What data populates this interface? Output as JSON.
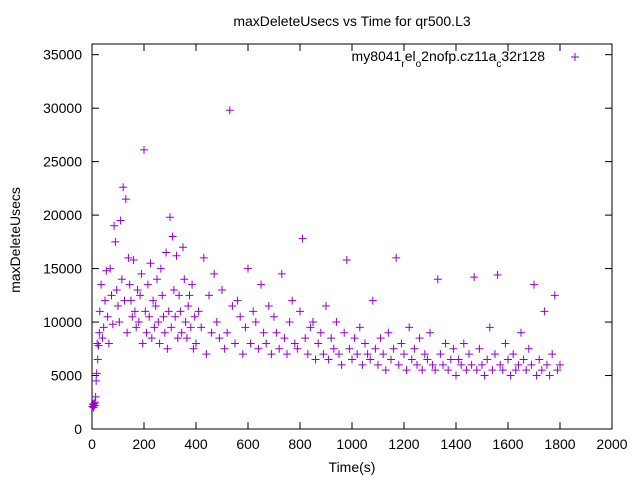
{
  "chart_data": {
    "type": "scatter",
    "title": "maxDeleteUsecs vs Time for qr500.L3",
    "xlabel": "Time(s)",
    "ylabel": "maxDeleteUsecs",
    "xlim": [
      0,
      2000
    ],
    "ylim": [
      0,
      36000
    ],
    "xticks": [
      0,
      200,
      400,
      600,
      800,
      1000,
      1200,
      1400,
      1600,
      1800,
      2000
    ],
    "yticks": [
      0,
      5000,
      10000,
      15000,
      20000,
      25000,
      30000,
      35000
    ],
    "grid": false,
    "legend_position": "top-right",
    "series": [
      {
        "name_parts": [
          "my8041",
          "r",
          "el",
          "o",
          "2nofp.cz11a",
          "c",
          "32r128"
        ],
        "marker": "+",
        "color": "#9400d3",
        "x": [
          2,
          4,
          6,
          8,
          10,
          12,
          14,
          16,
          18,
          20,
          22,
          25,
          28,
          30,
          35,
          40,
          45,
          50,
          55,
          60,
          65,
          70,
          75,
          80,
          85,
          90,
          95,
          100,
          105,
          110,
          115,
          120,
          125,
          130,
          135,
          140,
          145,
          150,
          155,
          160,
          165,
          170,
          175,
          180,
          185,
          190,
          195,
          200,
          205,
          210,
          215,
          220,
          225,
          230,
          235,
          240,
          245,
          250,
          255,
          260,
          265,
          270,
          275,
          280,
          285,
          290,
          295,
          300,
          305,
          310,
          315,
          320,
          325,
          330,
          335,
          340,
          345,
          350,
          355,
          360,
          365,
          370,
          375,
          380,
          385,
          390,
          395,
          400,
          410,
          420,
          430,
          440,
          450,
          460,
          470,
          480,
          490,
          500,
          510,
          520,
          530,
          540,
          550,
          560,
          570,
          580,
          590,
          600,
          610,
          620,
          630,
          640,
          650,
          660,
          670,
          680,
          690,
          700,
          710,
          720,
          730,
          740,
          750,
          760,
          770,
          780,
          790,
          800,
          810,
          820,
          830,
          840,
          850,
          860,
          870,
          880,
          890,
          900,
          910,
          920,
          930,
          940,
          950,
          960,
          970,
          980,
          990,
          1000,
          1010,
          1020,
          1030,
          1040,
          1050,
          1060,
          1070,
          1080,
          1090,
          1100,
          1110,
          1120,
          1130,
          1140,
          1150,
          1160,
          1170,
          1180,
          1190,
          1200,
          1210,
          1220,
          1230,
          1240,
          1250,
          1260,
          1270,
          1280,
          1290,
          1300,
          1310,
          1320,
          1330,
          1340,
          1350,
          1360,
          1370,
          1380,
          1390,
          1400,
          1410,
          1420,
          1430,
          1440,
          1450,
          1460,
          1470,
          1480,
          1490,
          1500,
          1510,
          1520,
          1530,
          1540,
          1550,
          1560,
          1570,
          1580,
          1590,
          1600,
          1610,
          1620,
          1630,
          1640,
          1650,
          1660,
          1670,
          1680,
          1690,
          1700,
          1710,
          1720,
          1730,
          1740,
          1750,
          1760,
          1770,
          1780,
          1790,
          1800
        ],
        "y": [
          2100,
          2300,
          2000,
          2400,
          2200,
          2500,
          3000,
          4500,
          5200,
          8000,
          6500,
          7800,
          9000,
          11000,
          13500,
          8500,
          9500,
          12000,
          14800,
          10500,
          8000,
          15000,
          12500,
          9800,
          19000,
          17500,
          13000,
          11500,
          10000,
          19500,
          14000,
          22600,
          12000,
          21500,
          9000,
          16000,
          13500,
          12000,
          10500,
          15800,
          11000,
          9500,
          13000,
          10000,
          12500,
          14500,
          8000,
          26100,
          11000,
          9000,
          13500,
          10500,
          15500,
          8500,
          12000,
          9500,
          11500,
          14000,
          10000,
          8000,
          15000,
          12500,
          10500,
          9000,
          16500,
          7500,
          11000,
          19800,
          9500,
          18000,
          13000,
          10500,
          16200,
          8500,
          12500,
          11000,
          9000,
          17000,
          14000,
          10000,
          8500,
          11500,
          12500,
          9500,
          13500,
          7500,
          10500,
          8000,
          11000,
          9500,
          16000,
          7000,
          12500,
          9000,
          14500,
          10000,
          8500,
          13000,
          7500,
          9000,
          29800,
          11500,
          8000,
          12000,
          10500,
          7000,
          9500,
          15000,
          8000,
          11000,
          10000,
          7500,
          13500,
          9000,
          8000,
          11500,
          7000,
          10500,
          9000,
          7500,
          14500,
          8500,
          7000,
          10000,
          12000,
          8000,
          7500,
          11000,
          17800,
          8500,
          7000,
          9500,
          10000,
          6500,
          8000,
          9000,
          7000,
          11500,
          6500,
          8500,
          7500,
          10000,
          7000,
          6000,
          9000,
          15800,
          7500,
          6500,
          8500,
          7000,
          9500,
          6000,
          8000,
          7000,
          6500,
          12000,
          7500,
          6000,
          8500,
          7000,
          5500,
          9000,
          6500,
          7500,
          16000,
          6000,
          8000,
          7000,
          5500,
          9500,
          6500,
          7500,
          6000,
          8500,
          5500,
          7000,
          6500,
          9000,
          6000,
          5500,
          14000,
          7000,
          6000,
          8000,
          5500,
          6500,
          7500,
          5000,
          6500,
          6000,
          8000,
          5500,
          7000,
          6000,
          14200,
          5500,
          7500,
          6000,
          5000,
          6500,
          9500,
          5500,
          7000,
          14400,
          6000,
          5500,
          8000,
          6500,
          5000,
          7000,
          5500,
          6000,
          9000,
          6500,
          5500,
          7500,
          6000,
          13500,
          5000,
          6500,
          5500,
          11000,
          6000,
          5000,
          7000,
          12500,
          5500,
          6000
        ]
      }
    ]
  }
}
